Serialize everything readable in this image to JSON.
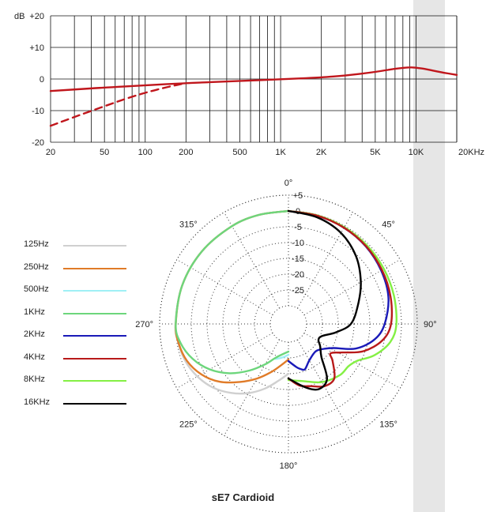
{
  "chart_data": [
    {
      "type": "line",
      "x_scale": "log",
      "xlim": [
        20,
        20000
      ],
      "ylim": [
        -20,
        20
      ],
      "ylabel_prefix": "dB",
      "y_ticks": [
        {
          "value": 20,
          "label": "+20"
        },
        {
          "value": 10,
          "label": "+10"
        },
        {
          "value": 0,
          "label": "0"
        },
        {
          "value": -10,
          "label": "-10"
        },
        {
          "value": -20,
          "label": "-20"
        }
      ],
      "x_ticks": [
        {
          "value": 20,
          "label": "20"
        },
        {
          "value": 50,
          "label": "50"
        },
        {
          "value": 100,
          "label": "100"
        },
        {
          "value": 200,
          "label": "200"
        },
        {
          "value": 500,
          "label": "500"
        },
        {
          "value": 1000,
          "label": "1K"
        },
        {
          "value": 2000,
          "label": "2K"
        },
        {
          "value": 5000,
          "label": "5K"
        },
        {
          "value": 10000,
          "label": "10K"
        },
        {
          "value": 20000,
          "label": "20KHz"
        }
      ],
      "grid": true,
      "series": [
        {
          "style": "solid",
          "color": "#c0161c",
          "x": [
            20,
            50,
            100,
            200,
            500,
            1000,
            2000,
            3000,
            5000,
            7000,
            9000,
            10000,
            12000,
            15000,
            20000
          ],
          "y": [
            -3.8,
            -2.7,
            -2,
            -1.3,
            -0.6,
            -0.1,
            0.5,
            1.1,
            2.2,
            3.3,
            3.7,
            3.6,
            3.1,
            2.2,
            1.3
          ]
        },
        {
          "style": "dashed",
          "color": "#c0161c",
          "x": [
            20,
            30,
            50,
            70,
            100,
            150,
            200
          ],
          "y": [
            -14.8,
            -12,
            -8.6,
            -6.4,
            -4.3,
            -2.4,
            -1.3
          ]
        }
      ]
    },
    {
      "type": "polar",
      "title": "sE7  Cardioid",
      "angle_labels": [
        {
          "angle": 0,
          "label": "0°"
        },
        {
          "angle": 45,
          "label": "45°"
        },
        {
          "angle": 90,
          "label": "90°"
        },
        {
          "angle": 135,
          "label": "135°"
        },
        {
          "angle": 180,
          "label": "180°"
        },
        {
          "angle": 225,
          "label": "225°"
        },
        {
          "angle": 270,
          "label": "270°"
        },
        {
          "angle": 315,
          "label": "315°"
        }
      ],
      "radial_ticks": [
        {
          "value": 5,
          "label": "+5"
        },
        {
          "value": 0,
          "label": "0"
        },
        {
          "value": -5,
          "label": "-5"
        },
        {
          "value": -10,
          "label": "-10"
        },
        {
          "value": -15,
          "label": "-15"
        },
        {
          "value": -20,
          "label": "-20"
        },
        {
          "value": -25,
          "label": "-25"
        }
      ],
      "rlim": [
        -30,
        5
      ],
      "series": [
        {
          "name": "125Hz",
          "color": "#d0d0d0",
          "side": "left",
          "angles": [
            180,
            190,
            200,
            210,
            220,
            230,
            240,
            250,
            260,
            270,
            290,
            310,
            330,
            345,
            360
          ],
          "values": [
            -20,
            -17.5,
            -14,
            -10.5,
            -7.3,
            -4.5,
            -2.5,
            -1.1,
            -0.4,
            0,
            0,
            0,
            0,
            0,
            0
          ]
        },
        {
          "name": "250Hz",
          "color": "#e07b28",
          "side": "left",
          "angles": [
            180,
            190,
            200,
            210,
            220,
            230,
            240,
            250,
            260,
            270,
            290,
            310,
            330,
            345,
            360
          ],
          "values": [
            -24.5,
            -22.5,
            -19.5,
            -15.8,
            -11.8,
            -7.3,
            -3.9,
            -1.6,
            -0.5,
            -0.1,
            0,
            0,
            0,
            0,
            0
          ]
        },
        {
          "name": "500Hz",
          "color": "#9ff0f5",
          "side": "left",
          "angles": [
            180,
            185,
            190,
            195,
            200
          ],
          "values": [
            -26,
            -25.5,
            -25,
            -24.5,
            -24
          ]
        },
        {
          "name": "1KHz",
          "color": "#6dd67c",
          "side": "left",
          "angles": [
            180,
            200,
            210,
            220,
            230,
            240,
            250,
            260,
            270,
            290,
            310,
            330,
            345,
            360
          ],
          "values": [
            -27,
            -24.5,
            -21,
            -16.5,
            -11.5,
            -7,
            -3.5,
            -1.1,
            -0.1,
            0,
            0,
            0,
            0,
            0
          ]
        },
        {
          "name": "2KHz",
          "color": "#1a1ab8",
          "side": "right",
          "angles": [
            0,
            15,
            30,
            45,
            60,
            75,
            90,
            100,
            110,
            118,
            125,
            135,
            150,
            160,
            165,
            170,
            180
          ],
          "values": [
            0,
            -0.3,
            -0.6,
            -1.1,
            -1.9,
            -3,
            -5.3,
            -8,
            -13,
            -19.5,
            -22,
            -23.5,
            -22.5,
            -20.5,
            -21,
            -22,
            -24
          ]
        },
        {
          "name": "4KHz",
          "color": "#b81a1a",
          "side": "right",
          "angles": [
            0,
            15,
            30,
            45,
            60,
            75,
            90,
            100,
            110,
            118,
            125,
            130,
            140,
            150,
            160,
            170,
            180
          ],
          "values": [
            0,
            -0.3,
            -0.6,
            -1,
            -1.6,
            -2.3,
            -3.3,
            -5.6,
            -10.5,
            -16.5,
            -19.5,
            -17.5,
            -13.2,
            -13,
            -14.8,
            -16,
            -18.5
          ]
        },
        {
          "name": "8KHz",
          "color": "#84f044",
          "side": "right",
          "angles": [
            0,
            15,
            30,
            45,
            60,
            75,
            90,
            100,
            110,
            118,
            125,
            135,
            150,
            165,
            180
          ],
          "values": [
            0,
            -0.2,
            -0.4,
            -0.6,
            -0.9,
            -1.2,
            -1.6,
            -3,
            -6.8,
            -11,
            -12.5,
            -12.8,
            -14.5,
            -17,
            -18
          ]
        },
        {
          "name": "16KHz",
          "color": "#000000",
          "side": "right",
          "angles": [
            0,
            15,
            30,
            45,
            60,
            75,
            90,
            100,
            110,
            118,
            125,
            135,
            145,
            155,
            165,
            180
          ],
          "values": [
            0,
            -0.8,
            -2.5,
            -5.5,
            -9.3,
            -13,
            -16,
            -20.5,
            -24.5,
            -25,
            -23.5,
            -21,
            -14.5,
            -13,
            -15,
            -18.5
          ]
        }
      ]
    }
  ]
}
